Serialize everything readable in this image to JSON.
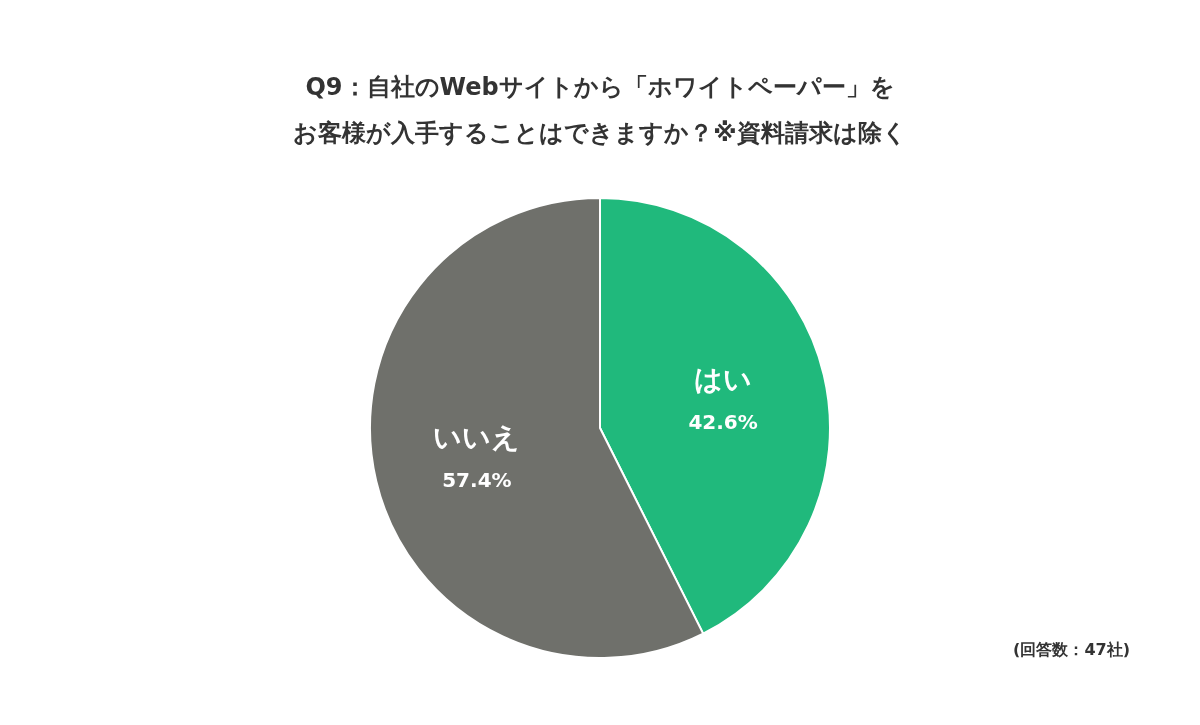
{
  "chart_data": {
    "type": "pie",
    "title": "Q9：自社のWebサイトから「ホワイトペーパー」を",
    "subtitle": "お客様が入手することはできますか？※資料請求は除く",
    "categories": [
      "はい",
      "いいえ"
    ],
    "values": [
      42.6,
      57.4
    ],
    "value_labels": [
      "42.6%",
      "57.4%"
    ],
    "colors": [
      "#20b97c",
      "#6f706b"
    ],
    "annotations": [
      "(回答数：47社)"
    ]
  }
}
